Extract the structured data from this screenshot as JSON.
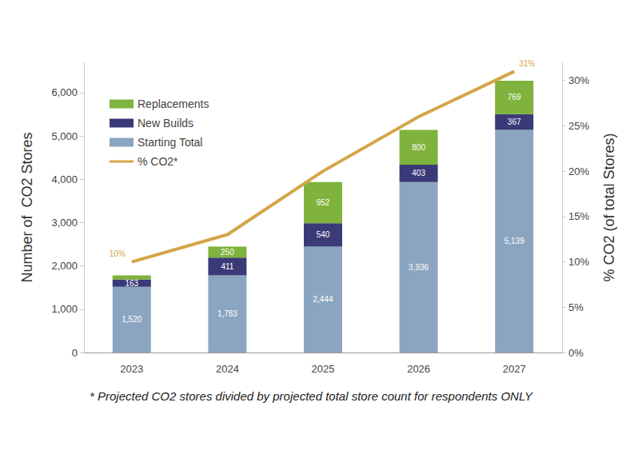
{
  "chart_data": {
    "type": "bar",
    "stacked": true,
    "grid": false,
    "data_labels": true,
    "legend": "upper left",
    "categories": [
      "2023",
      "2024",
      "2025",
      "2026",
      "2027"
    ],
    "series": [
      {
        "name": "Starting Total",
        "type": "bar",
        "color": "#8ba5c0",
        "values": [
          1520,
          1783,
          2444,
          3936,
          5139
        ],
        "value_labels": [
          "1,520",
          "1,783",
          "2,444",
          "3,936",
          "5,139"
        ]
      },
      {
        "name": "New Builds",
        "type": "bar",
        "color": "#3b3a78",
        "values": [
          163,
          411,
          540,
          403,
          367
        ]
      },
      {
        "name": "Replacements",
        "type": "bar",
        "color": "#7fb33d",
        "values": [
          100,
          250,
          952,
          800,
          769
        ],
        "value_labels": [
          null,
          "250",
          "952",
          "800",
          "769"
        ]
      },
      {
        "name": "% CO2*",
        "type": "line",
        "axis": "y2",
        "color": "#d4a548",
        "values": [
          10,
          13,
          20,
          26,
          31
        ],
        "value_labels": [
          "10%",
          null,
          null,
          null,
          "31%"
        ]
      }
    ],
    "y_label": "Number of  CO2 Stores",
    "y2_label": "% CO2 (of total Stores)",
    "ylim": [
      0,
      6700
    ],
    "yticks": [
      0,
      {
        "value": 1000,
        "label": "1,000"
      },
      {
        "value": 2000,
        "label": "2,000"
      },
      {
        "value": 3000,
        "label": "3,000"
      },
      {
        "value": 4000,
        "label": "4,000"
      },
      {
        "value": 5000,
        "label": "5,000"
      },
      {
        "value": 6000,
        "label": "6,000"
      }
    ],
    "y2lim": [
      0,
      32
    ],
    "y2ticks": [
      {
        "value": 0,
        "label": "0%"
      },
      {
        "value": 5,
        "label": "5%"
      },
      {
        "value": 10,
        "label": "10%"
      },
      {
        "value": 15,
        "label": "15%"
      },
      {
        "value": 20,
        "label": "20%"
      },
      {
        "value": 25,
        "label": "25%"
      },
      {
        "value": 30,
        "label": "30%"
      }
    ],
    "annotations": [
      "* Projected CO2 stores divided by projected total store count for respondents ONLY"
    ]
  }
}
